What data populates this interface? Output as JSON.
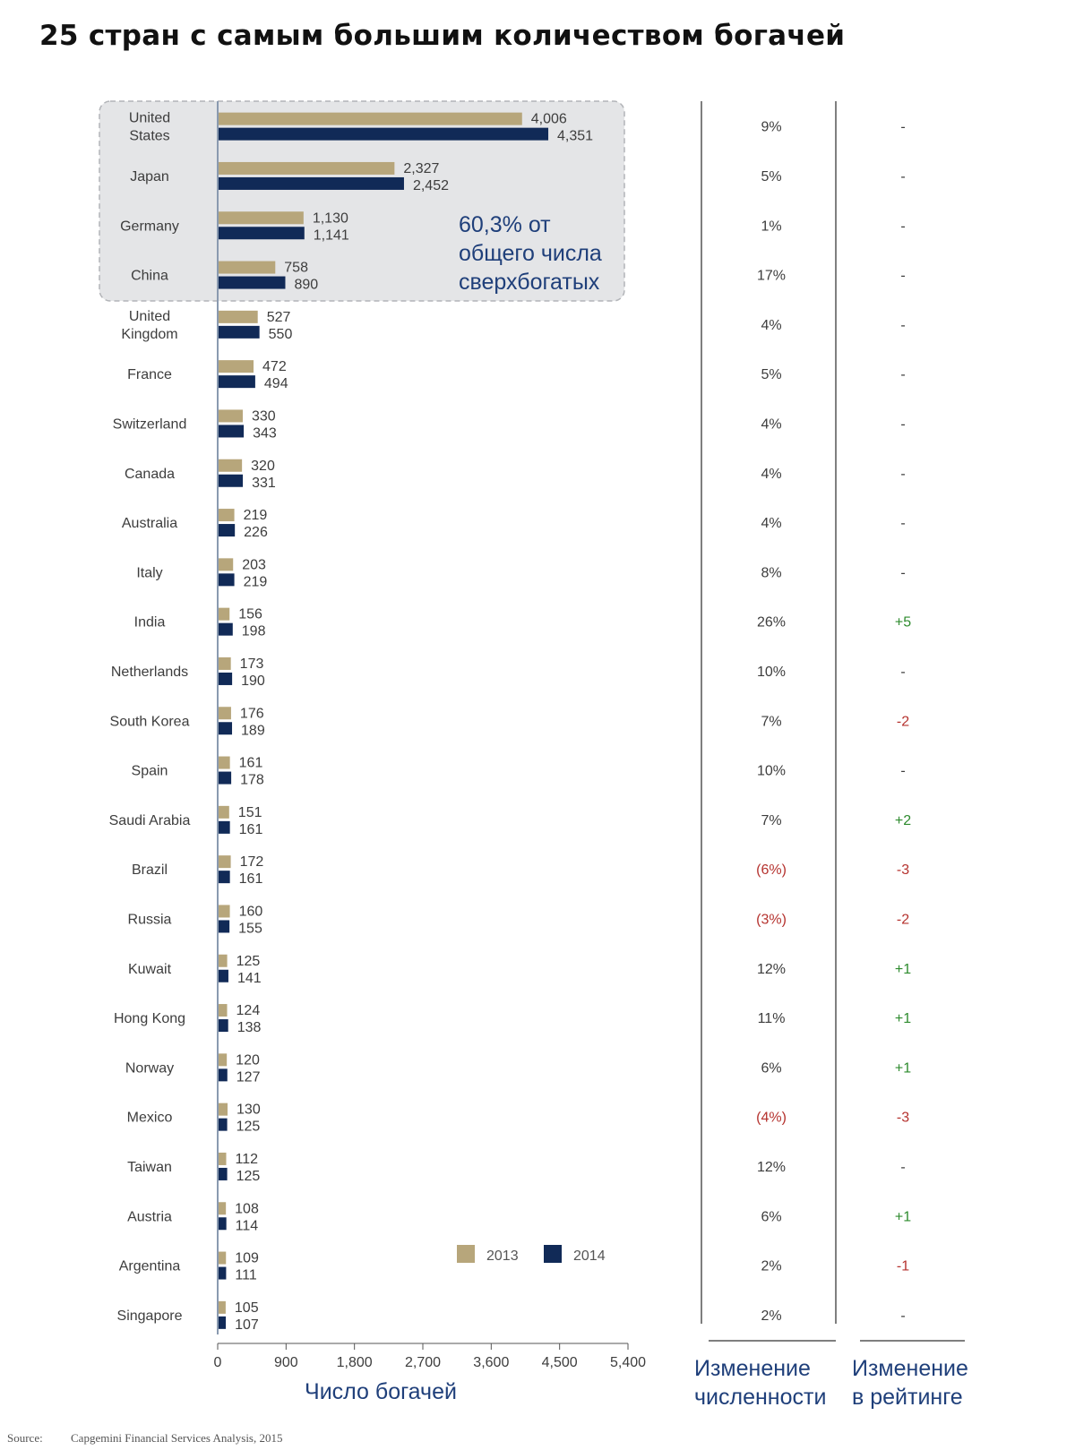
{
  "title": "25 стран с самым большим количеством богачей",
  "callout": [
    "60,3% от",
    "общего числа",
    "сверхбогатых"
  ],
  "column_titles": {
    "change": [
      "Изменение",
      "численности"
    ],
    "rank": [
      "Изменение",
      "в рейтинге"
    ]
  },
  "source": {
    "label": "Source:",
    "text": "Capgemini Financial Services Analysis, 2015"
  },
  "colors": {
    "2013": "#b7a67b",
    "2014": "#112a57",
    "negative": "#b5322e",
    "positive": "#2e8b2e",
    "text_blue": "#1f3f7a"
  },
  "chart_data": {
    "type": "bar",
    "orientation": "horizontal",
    "xlabel": "Число богачей",
    "xlim": [
      0,
      5400
    ],
    "xticks": [
      0,
      900,
      1800,
      2700,
      3600,
      4500,
      5400
    ],
    "xtick_labels": [
      "0",
      "900",
      "1,800",
      "2,700",
      "3,600",
      "4,500",
      "5,400"
    ],
    "legend": {
      "position": "bottom-right",
      "items": [
        "2013",
        "2014"
      ]
    },
    "categories": [
      [
        "United",
        "States"
      ],
      [
        "Japan"
      ],
      [
        "Germany"
      ],
      [
        "China"
      ],
      [
        "United",
        "Kingdom"
      ],
      [
        "France"
      ],
      [
        "Switzerland"
      ],
      [
        "Canada"
      ],
      [
        "Australia"
      ],
      [
        "Italy"
      ],
      [
        "India"
      ],
      [
        "Netherlands"
      ],
      [
        "South Korea"
      ],
      [
        "Spain"
      ],
      [
        "Saudi Arabia"
      ],
      [
        "Brazil"
      ],
      [
        "Russia"
      ],
      [
        "Kuwait"
      ],
      [
        "Hong Kong"
      ],
      [
        "Norway"
      ],
      [
        "Mexico"
      ],
      [
        "Taiwan"
      ],
      [
        "Austria"
      ],
      [
        "Argentina"
      ],
      [
        "Singapore"
      ]
    ],
    "series": [
      {
        "name": "2013",
        "values": [
          4006,
          2327,
          1130,
          758,
          527,
          472,
          330,
          320,
          219,
          203,
          156,
          173,
          176,
          161,
          151,
          172,
          160,
          125,
          124,
          120,
          130,
          112,
          108,
          109,
          105
        ],
        "labels": [
          "4,006",
          "2,327",
          "1,130",
          "758",
          "527",
          "472",
          "330",
          "320",
          "219",
          "203",
          "156",
          "173",
          "176",
          "161",
          "151",
          "172",
          "160",
          "125",
          "124",
          "120",
          "130",
          "112",
          "108",
          "109",
          "105"
        ]
      },
      {
        "name": "2014",
        "values": [
          4351,
          2452,
          1141,
          890,
          550,
          494,
          343,
          331,
          226,
          219,
          198,
          190,
          189,
          178,
          161,
          161,
          155,
          141,
          138,
          127,
          125,
          125,
          114,
          111,
          107
        ],
        "labels": [
          "4,351",
          "2,452",
          "1,141",
          "890",
          "550",
          "494",
          "343",
          "331",
          "226",
          "219",
          "198",
          "190",
          "189",
          "178",
          "161",
          "161",
          "155",
          "141",
          "138",
          "127",
          "125",
          "125",
          "114",
          "111",
          "107"
        ]
      }
    ],
    "change_population": [
      "9%",
      "5%",
      "1%",
      "17%",
      "4%",
      "5%",
      "4%",
      "4%",
      "4%",
      "8%",
      "26%",
      "10%",
      "7%",
      "10%",
      "7%",
      "(6%)",
      "(3%)",
      "12%",
      "11%",
      "6%",
      "(4%)",
      "12%",
      "6%",
      "2%",
      "2%"
    ],
    "change_rank": [
      "-",
      "-",
      "-",
      "-",
      "-",
      "-",
      "-",
      "-",
      "-",
      "-",
      "+5",
      "-",
      "-2",
      "-",
      "+2",
      "-3",
      "-2",
      "+1",
      "+1",
      "+1",
      "-3",
      "-",
      "+1",
      "-1",
      "-"
    ],
    "highlight": {
      "rows": 4,
      "text": [
        "60,3% от",
        "общего числа",
        "сверхбогатых"
      ]
    }
  }
}
